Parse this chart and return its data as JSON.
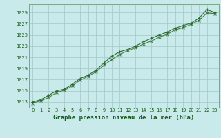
{
  "title": "Graphe pression niveau de la mer (hPa)",
  "bg_color": "#c8eaea",
  "grid_color": "#a8cccc",
  "line_color": "#2d6a2d",
  "spine_color": "#7aaa7a",
  "text_color": "#1a5c1a",
  "xlim": [
    -0.5,
    23.5
  ],
  "ylim": [
    1012.0,
    1030.5
  ],
  "yticks": [
    1013,
    1015,
    1017,
    1019,
    1021,
    1023,
    1025,
    1027,
    1029
  ],
  "xticks": [
    0,
    1,
    2,
    3,
    4,
    5,
    6,
    7,
    8,
    9,
    10,
    11,
    12,
    13,
    14,
    15,
    16,
    17,
    18,
    19,
    20,
    21,
    22,
    23
  ],
  "series1_x": [
    0,
    1,
    2,
    3,
    4,
    5,
    6,
    7,
    8,
    9,
    10,
    11,
    12,
    13,
    14,
    15,
    16,
    17,
    18,
    19,
    20,
    21,
    22,
    23
  ],
  "series1_y": [
    1013.0,
    1013.4,
    1014.2,
    1015.0,
    1015.3,
    1016.2,
    1017.2,
    1017.8,
    1018.7,
    1020.0,
    1021.2,
    1022.0,
    1022.4,
    1023.0,
    1023.8,
    1024.4,
    1025.0,
    1025.5,
    1026.2,
    1026.7,
    1027.1,
    1028.0,
    1029.5,
    1029.0
  ],
  "series2_x": [
    0,
    1,
    2,
    3,
    4,
    5,
    6,
    7,
    8,
    9,
    10,
    11,
    12,
    13,
    14,
    15,
    16,
    17,
    18,
    19,
    20,
    21,
    22,
    23
  ],
  "series2_y": [
    1012.8,
    1013.2,
    1013.8,
    1014.7,
    1015.1,
    1015.9,
    1016.9,
    1017.6,
    1018.4,
    1019.6,
    1020.6,
    1021.5,
    1022.2,
    1022.7,
    1023.4,
    1023.9,
    1024.6,
    1025.1,
    1025.9,
    1026.3,
    1026.9,
    1027.6,
    1028.9,
    1028.8
  ],
  "xlabel_fontsize": 6.5,
  "ylabel_fontsize": 5.5,
  "tick_fontsize": 5.0,
  "title_fontsize": 7
}
